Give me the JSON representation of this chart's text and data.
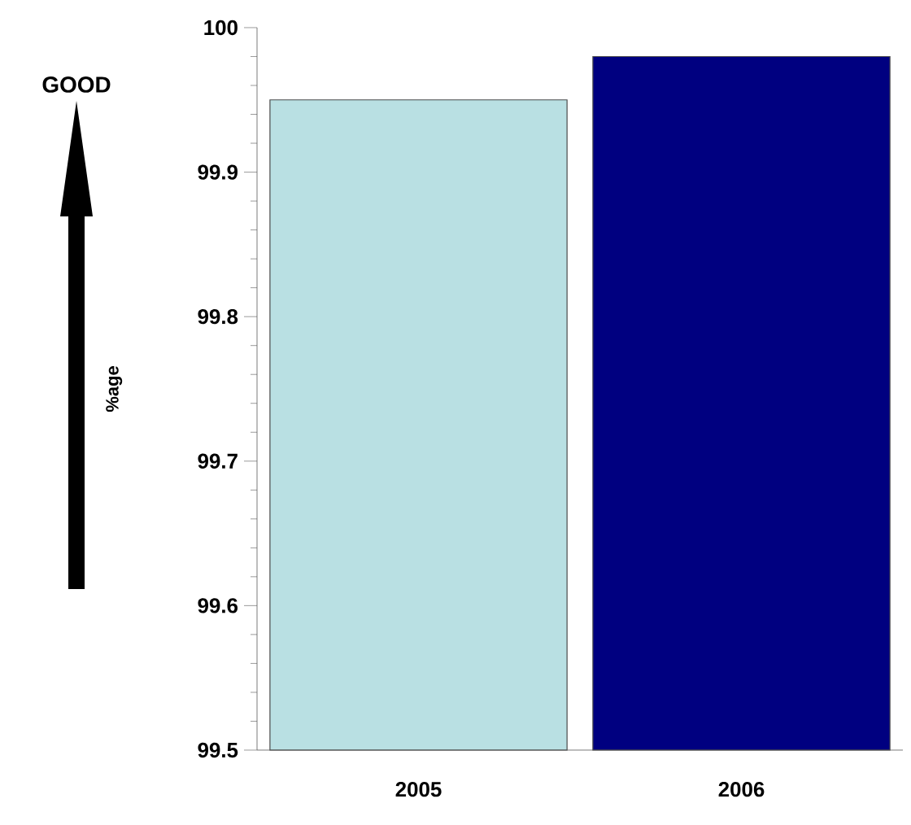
{
  "chart_data": {
    "type": "bar",
    "categories": [
      "2005",
      "2006"
    ],
    "values": [
      99.95,
      99.98
    ],
    "colors": [
      "#b9e0e3",
      "#000080"
    ],
    "ylabel": "%age",
    "annotations": [
      "GOOD"
    ],
    "ylim": [
      99.5,
      100
    ],
    "yticks": [
      99.5,
      99.6,
      99.7,
      99.8,
      99.9,
      100
    ]
  }
}
